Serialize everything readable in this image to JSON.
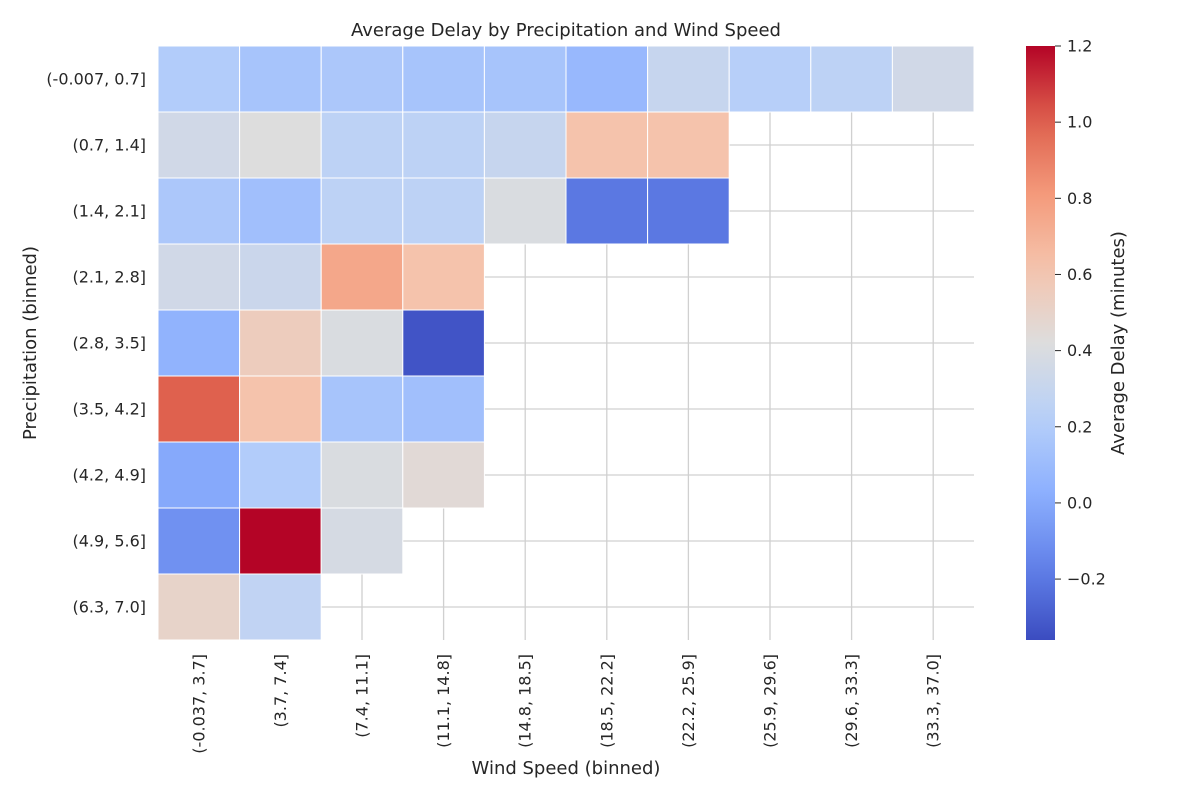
{
  "chart_data": {
    "type": "heatmap",
    "title": "Average Delay by Precipitation and Wind Speed",
    "xlabel": "Wind Speed (binned)",
    "ylabel": "Precipitation (binned)",
    "x_categories": [
      "(-0.037, 3.7]",
      "(3.7, 7.4]",
      "(7.4, 11.1]",
      "(11.1, 14.8]",
      "(14.8, 18.5]",
      "(18.5, 22.2]",
      "(22.2, 25.9]",
      "(25.9, 29.6]",
      "(29.6, 33.3]",
      "(33.3, 37.0]"
    ],
    "y_categories": [
      "(-0.007, 0.7]",
      "(0.7, 1.4]",
      "(1.4, 2.1]",
      "(2.1, 2.8]",
      "(2.8, 3.5]",
      "(3.5, 4.2]",
      "(4.2, 4.9]",
      "(4.9, 5.6]",
      "(6.3, 7.0]"
    ],
    "values": [
      [
        0.2,
        0.15,
        0.17,
        0.15,
        0.15,
        0.08,
        0.3,
        0.22,
        0.25,
        0.35
      ],
      [
        0.35,
        0.42,
        0.25,
        0.25,
        0.3,
        0.62,
        0.62,
        null,
        null,
        null
      ],
      [
        0.17,
        0.12,
        0.25,
        0.25,
        0.4,
        -0.2,
        -0.2,
        null,
        null,
        null
      ],
      [
        0.35,
        0.32,
        0.75,
        0.62,
        null,
        null,
        null,
        null,
        null,
        null
      ],
      [
        0.05,
        0.55,
        0.4,
        -0.33,
        null,
        null,
        null,
        null,
        null,
        null
      ],
      [
        1.0,
        0.62,
        0.15,
        0.12,
        null,
        null,
        null,
        null,
        null,
        null
      ],
      [
        0.0,
        0.2,
        0.4,
        0.45,
        null,
        null,
        null,
        null,
        null,
        null
      ],
      [
        -0.1,
        1.2,
        0.38,
        null,
        null,
        null,
        null,
        null,
        null,
        null
      ],
      [
        0.5,
        0.27,
        null,
        null,
        null,
        null,
        null,
        null,
        null,
        null
      ]
    ],
    "colorbar": {
      "label": "Average Delay (minutes)",
      "min": -0.36,
      "max": 1.2,
      "ticks": [
        -0.2,
        0.0,
        0.2,
        0.4,
        0.6,
        0.8,
        1.0,
        1.2
      ],
      "tick_labels": [
        "−0.2",
        "0.0",
        "0.2",
        "0.4",
        "0.6",
        "0.8",
        "1.0",
        "1.2"
      ],
      "colormap": "coolwarm"
    },
    "grid": true
  }
}
